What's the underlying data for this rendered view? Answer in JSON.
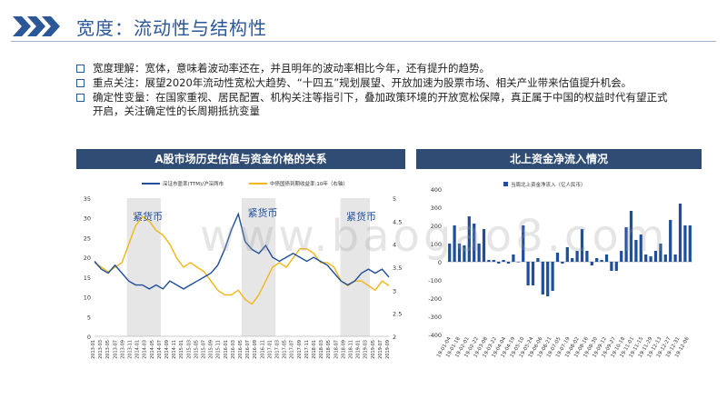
{
  "header": {
    "title": "宽度：流动性与结构性"
  },
  "bullets": [
    {
      "label": "宽度理解：",
      "text": "宽体，意味着波动率还在，并且明年的波动率相比今年，还有提升的趋势。"
    },
    {
      "label": "重点关注：",
      "text": "展望2020年流动性宽松大趋势、“十四五”规划展望、开放加速为股票市场、相关产业带来估值提升机会。"
    },
    {
      "label": "确定性变量：",
      "text": "在国家重视、居民配置、机构关注等指引下，叠加政策环境的开放宽松保障，真正属于中国的权益时代有望正式开启，关注确定性的长周期抵抗变量"
    }
  ],
  "watermark": "www.baogao8.com",
  "chart_left": {
    "panel_title": "A股市场历史估值与资金价格的关系",
    "legend": [
      "深证市盈率(TTM)/沪深两市",
      "中债国债到期收益率:10年（右轴）"
    ],
    "annotations": [
      "紧货币",
      "紧货币",
      "紧货币"
    ],
    "left_axis": [
      "35",
      "30",
      "25",
      "20",
      "15",
      "10",
      "5",
      "0"
    ],
    "right_axis": [
      "5",
      "4.5",
      "4",
      "3.5",
      "3",
      "2.5",
      "2"
    ],
    "x_labels": [
      "2013-01",
      "2013-03",
      "2013-05",
      "2013-07",
      "2013-09",
      "2013-11",
      "2014-01",
      "2014-03",
      "2014-05",
      "2014-07",
      "2014-09",
      "2014-11",
      "2015-01",
      "2015-03",
      "2015-05",
      "2015-07",
      "2015-09",
      "2015-11",
      "2016-01",
      "2016-03",
      "2016-05",
      "2016-07",
      "2016-09",
      "2016-11",
      "2017-01",
      "2017-03",
      "2017-05",
      "2017-07",
      "2017-09",
      "2017-11",
      "2018-01",
      "2018-03",
      "2018-05",
      "2018-07",
      "2018-09",
      "2018-11",
      "2019-01",
      "2019-03",
      "2019-05",
      "2019-07",
      "2019-09"
    ],
    "colors": {
      "pe": "#1f4e9a",
      "yield": "#f2b619",
      "shade": "#e6e6e6"
    }
  },
  "chart_data": {
    "type": "bar",
    "panel_title": "北上资金净流入情况",
    "legend": "当周北上资金净流入（亿人民币）",
    "ylim": [
      -400,
      400
    ],
    "yticks": [
      "400",
      "300",
      "200",
      "100",
      "0",
      "-100",
      "-200",
      "-300",
      "-400"
    ],
    "categories": [
      "19-01-04",
      "19-01-11",
      "19-01-18",
      "19-01-25",
      "19-02-01",
      "19-02-15",
      "19-02-22",
      "19-03-01",
      "19-03-08",
      "19-03-15",
      "19-03-22",
      "19-03-29",
      "19-04-04",
      "19-04-12",
      "19-04-19",
      "19-04-26",
      "19-05-10",
      "19-05-17",
      "19-05-24",
      "19-05-31",
      "19-06-06",
      "19-06-14",
      "19-06-21",
      "19-06-28",
      "19-07-05",
      "19-07-12",
      "19-07-19",
      "19-07-26",
      "19-08-02",
      "19-08-09",
      "19-08-16",
      "19-08-23",
      "19-08-30",
      "19-09-06",
      "19-09-12",
      "19-09-20",
      "19-09-27",
      "19-10-11",
      "19-10-18",
      "19-10-25",
      "19-11-01",
      "19-11-08",
      "19-11-15",
      "19-11-22",
      "19-11-29",
      "19-12-06",
      "19-12-13",
      "19-12-20",
      "19-12-27",
      "19-12-31"
    ],
    "x_labels": [
      "19-01-04",
      "19-01-18",
      "19-02-01",
      "19-02-22",
      "19-03-08",
      "19-03-22",
      "19-04-04",
      "19-04-19",
      "19-05-10",
      "19-05-24",
      "19-06-06",
      "19-06-21",
      "19-07-05",
      "19-07-19",
      "19-08-02",
      "19-08-16",
      "19-08-30",
      "19-09-12",
      "19-09-27",
      "19-10-18",
      "19-11-01",
      "19-11-15",
      "19-11-29",
      "19-12-13",
      "19-12-27",
      "19-12-31",
      "19-12-06"
    ],
    "values": [
      100,
      200,
      100,
      90,
      250,
      210,
      100,
      180,
      10,
      10,
      -10,
      10,
      -10,
      40,
      0,
      200,
      -130,
      -130,
      20,
      -180,
      -190,
      -160,
      50,
      -10,
      80,
      20,
      60,
      180,
      60,
      -20,
      20,
      10,
      40,
      -50,
      -50,
      60,
      190,
      280,
      120,
      150,
      40,
      30,
      60,
      100,
      40,
      230,
      40,
      320,
      200,
      200
    ],
    "bar_color": "#1f4e9a"
  }
}
